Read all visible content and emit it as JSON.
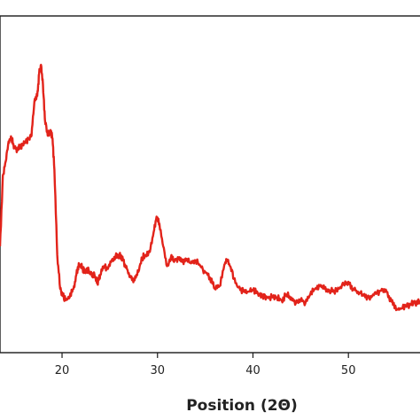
{
  "chart_data": {
    "type": "line",
    "xlabel": "Position (2Θ)",
    "ylabel": "",
    "title": "",
    "xlim": [
      13.5,
      57.5
    ],
    "ylim": [
      0,
      1000
    ],
    "grid": false,
    "xticks": [
      20,
      30,
      40,
      50
    ],
    "xtick_labels": [
      "20",
      "30",
      "40",
      "50"
    ],
    "series": [
      {
        "name": "",
        "color": "#e2231a",
        "x": [
          13.5,
          13.8,
          14.1,
          14.4,
          14.7,
          15.0,
          15.3,
          15.6,
          15.9,
          16.2,
          16.5,
          16.8,
          17.1,
          17.4,
          17.6,
          17.8,
          18.0,
          18.2,
          18.5,
          18.8,
          19.0,
          19.2,
          19.5,
          19.8,
          20.1,
          20.4,
          20.8,
          21.2,
          21.5,
          21.8,
          22.1,
          22.4,
          22.8,
          23.1,
          23.4,
          23.7,
          24.0,
          24.4,
          24.8,
          25.2,
          25.6,
          26.0,
          26.4,
          26.8,
          27.2,
          27.6,
          28.0,
          28.4,
          28.8,
          29.2,
          29.6,
          29.9,
          30.2,
          30.6,
          31.0,
          31.4,
          31.8,
          32.2,
          32.6,
          33.0,
          33.5,
          34.0,
          34.5,
          35.0,
          35.5,
          36.0,
          36.5,
          37.0,
          37.3,
          37.6,
          38.0,
          38.5,
          39.0,
          39.5,
          40.0,
          40.5,
          41.0,
          41.5,
          42.0,
          42.5,
          43.0,
          43.5,
          44.0,
          44.5,
          45.0,
          45.5,
          46.0,
          46.5,
          47.0,
          47.5,
          48.0,
          48.5,
          49.0,
          49.5,
          50.0,
          50.5,
          51.0,
          51.5,
          52.0,
          52.5,
          53.0,
          53.5,
          54.0,
          54.5,
          55.0,
          55.5,
          56.0,
          56.5,
          57.0,
          57.5
        ],
        "values": [
          350,
          600,
          650,
          720,
          730,
          700,
          690,
          700,
          710,
          720,
          730,
          740,
          860,
          880,
          960,
          990,
          920,
          800,
          740,
          760,
          730,
          620,
          320,
          200,
          175,
          160,
          170,
          200,
          250,
          285,
          275,
          260,
          265,
          250,
          250,
          220,
          250,
          280,
          270,
          300,
          315,
          320,
          300,
          270,
          240,
          230,
          260,
          310,
          320,
          330,
          400,
          455,
          430,
          350,
          280,
          310,
          300,
          310,
          295,
          300,
          290,
          300,
          280,
          260,
          240,
          200,
          210,
          285,
          300,
          280,
          235,
          205,
          190,
          190,
          195,
          185,
          175,
          170,
          170,
          170,
          160,
          180,
          170,
          150,
          160,
          150,
          180,
          200,
          210,
          200,
          195,
          190,
          200,
          215,
          225,
          200,
          190,
          180,
          170,
          175,
          185,
          200,
          190,
          155,
          125,
          130,
          140,
          145,
          150,
          160
        ]
      }
    ]
  }
}
